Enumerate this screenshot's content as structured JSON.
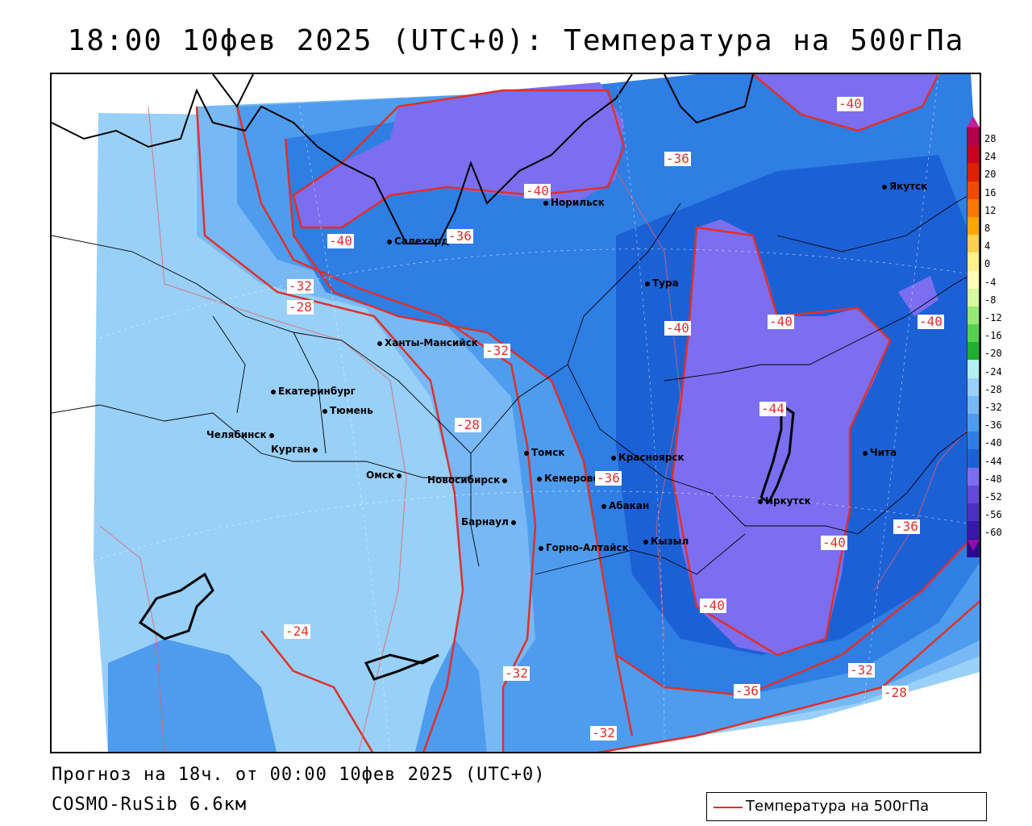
{
  "title": "18:00 10фев 2025 (UTC+0): Температура на 500гПа",
  "footer": {
    "forecast": "Прогноз на 18ч. от 00:00 10фев 2025 (UTC+0)",
    "model": "COSMO-RuSib 6.6км"
  },
  "legend": {
    "label": "Температура на 500гПа",
    "color": "#e0302a"
  },
  "colorbar": {
    "ticks": [
      "28",
      "24",
      "20",
      "16",
      "12",
      "8",
      "4",
      "0",
      "-4",
      "-8",
      "-12",
      "-16",
      "-20",
      "-24",
      "-28",
      "-32",
      "-36",
      "-40",
      "-44",
      "-48",
      "-52",
      "-56",
      "-60"
    ],
    "colors": [
      "#b0004a",
      "#c8001e",
      "#e01e00",
      "#f04a00",
      "#f87800",
      "#fca800",
      "#fcd050",
      "#fff08c",
      "#fffcb8",
      "#d8f8a0",
      "#98e878",
      "#58d050",
      "#20b030",
      "#b4f0f0",
      "#98d0f8",
      "#78b8f4",
      "#4e9cee",
      "#2e7ee4",
      "#1c60d6",
      "#7c6ef0",
      "#6448d8",
      "#4c30c0",
      "#3818a8",
      "#280a90"
    ]
  },
  "cities": [
    {
      "name": "Якутск"
    },
    {
      "name": "Норильск"
    },
    {
      "name": "Салехард"
    },
    {
      "name": "Тура"
    },
    {
      "name": "Ханты-Мансийск"
    },
    {
      "name": "Екатеринбург"
    },
    {
      "name": "Тюмень"
    },
    {
      "name": "Челябинск"
    },
    {
      "name": "Курган"
    },
    {
      "name": "Омск"
    },
    {
      "name": "Новосибирск"
    },
    {
      "name": "Томск"
    },
    {
      "name": "Кемерово"
    },
    {
      "name": "Барнаул"
    },
    {
      "name": "Красноярск"
    },
    {
      "name": "Абакан"
    },
    {
      "name": "Горно-Алтайск"
    },
    {
      "name": "Кызыл"
    },
    {
      "name": "Иркутск"
    },
    {
      "name": "Чита"
    }
  ],
  "contour_labels": [
    "-40",
    "-36",
    "-40",
    "-40",
    "-36",
    "-32",
    "-28",
    "-32",
    "-28",
    "-40",
    "-40",
    "-40",
    "-44",
    "-36",
    "-40",
    "-36",
    "-40",
    "-24",
    "-32",
    "-36",
    "-32",
    "-28",
    "-32"
  ]
}
